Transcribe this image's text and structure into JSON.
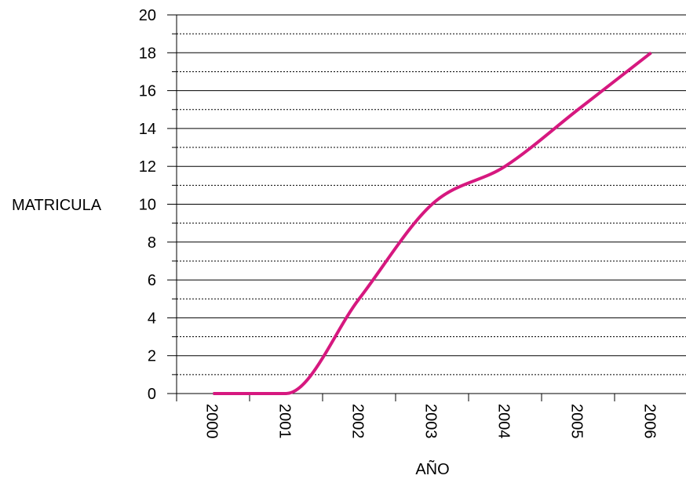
{
  "chart_data": {
    "type": "line",
    "title": "",
    "xlabel": "AÑO",
    "ylabel": "MATRICULA",
    "categories": [
      "2000",
      "2001",
      "2002",
      "2003",
      "2004",
      "2005",
      "2006"
    ],
    "series": [
      {
        "values": [
          0,
          0,
          5,
          10,
          12,
          15,
          18
        ]
      }
    ],
    "ylim": [
      0,
      20
    ],
    "y_ticks": [
      "0",
      "2",
      "4",
      "6",
      "8",
      "10",
      "12",
      "14",
      "16",
      "18",
      "20"
    ],
    "grid": "horizontal major solid, minor dotted",
    "legend": "none",
    "line_color": "#D6187F",
    "smooth": true
  }
}
